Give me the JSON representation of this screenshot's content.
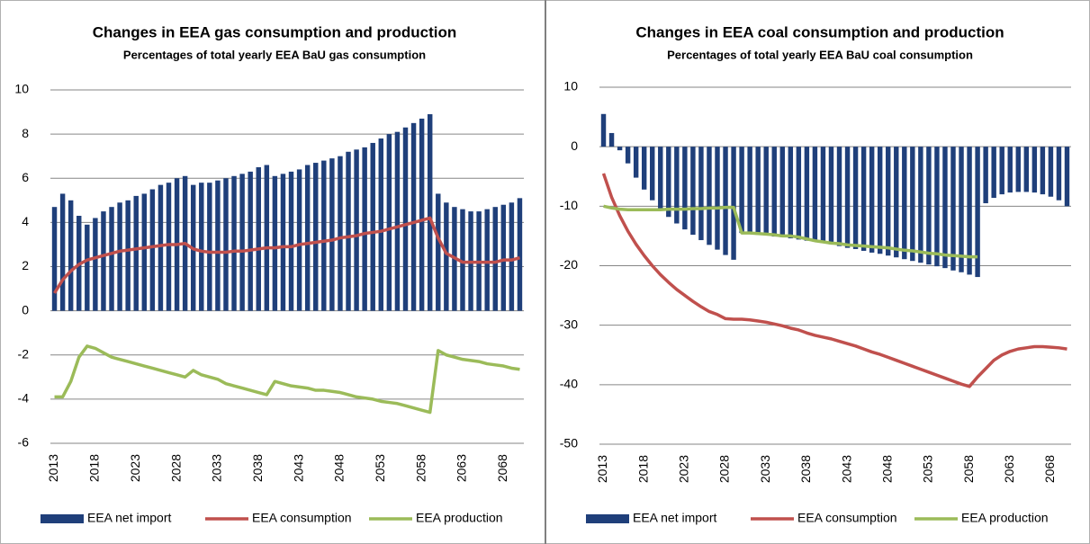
{
  "chart_data": [
    {
      "type": "bar-line",
      "title": "Changes in EEA  gas consumption and production",
      "subtitle": "Percentages  of total  yearly EEA BaU gas consumption",
      "categories": [
        "2013",
        null,
        null,
        null,
        null,
        "2018",
        null,
        null,
        null,
        null,
        "2023",
        null,
        null,
        null,
        null,
        "2028",
        null,
        null,
        null,
        null,
        "2033",
        null,
        null,
        null,
        null,
        "2038",
        null,
        null,
        null,
        null,
        "2043",
        null,
        null,
        null,
        null,
        "2048",
        null,
        null,
        null,
        null,
        "2053",
        null,
        null,
        null,
        null,
        "2058",
        null,
        null,
        null,
        null,
        "2063",
        null,
        null,
        null,
        null,
        "2068",
        null,
        null
      ],
      "ylim": [
        -6,
        10
      ],
      "yticks": [
        -6,
        -4,
        -2,
        0,
        2,
        4,
        6,
        8,
        10
      ],
      "grid": true,
      "series": [
        {
          "name": "EEA net import",
          "kind": "bar",
          "color": "#1f3f7a",
          "values": [
            4.7,
            5.3,
            5.0,
            4.3,
            3.9,
            4.2,
            4.5,
            4.7,
            4.9,
            5.0,
            5.2,
            5.3,
            5.5,
            5.7,
            5.8,
            6.0,
            6.1,
            5.7,
            5.8,
            5.8,
            5.9,
            6.0,
            6.1,
            6.2,
            6.3,
            6.5,
            6.6,
            6.1,
            6.2,
            6.3,
            6.4,
            6.6,
            6.7,
            6.8,
            6.9,
            7.0,
            7.2,
            7.3,
            7.4,
            7.6,
            7.8,
            8.0,
            8.1,
            8.3,
            8.5,
            8.7,
            8.9,
            5.3,
            4.9,
            4.7,
            4.6,
            4.5,
            4.5,
            4.6,
            4.7,
            4.8,
            4.9,
            5.1
          ]
        },
        {
          "name": "EEA consumption",
          "kind": "line",
          "color": "#c0504d",
          "values": [
            0.8,
            1.4,
            1.8,
            2.1,
            2.3,
            2.4,
            2.5,
            2.6,
            2.7,
            2.75,
            2.8,
            2.85,
            2.9,
            2.95,
            3.0,
            3.0,
            3.05,
            2.8,
            2.7,
            2.65,
            2.65,
            2.65,
            2.7,
            2.7,
            2.75,
            2.8,
            2.85,
            2.85,
            2.9,
            2.9,
            3.0,
            3.05,
            3.1,
            3.15,
            3.2,
            3.3,
            3.35,
            3.4,
            3.5,
            3.55,
            3.6,
            3.7,
            3.8,
            3.9,
            4.0,
            4.1,
            4.2,
            3.3,
            2.6,
            2.4,
            2.2,
            2.2,
            2.2,
            2.2,
            2.2,
            2.3,
            2.3,
            2.4
          ]
        },
        {
          "name": "EEA production",
          "kind": "line",
          "color": "#9bbb59",
          "values": [
            -3.9,
            -3.9,
            -3.2,
            -2.1,
            -1.6,
            -1.7,
            -1.9,
            -2.1,
            -2.2,
            -2.3,
            -2.4,
            -2.5,
            -2.6,
            -2.7,
            -2.8,
            -2.9,
            -3.0,
            -2.7,
            -2.9,
            -3.0,
            -3.1,
            -3.3,
            -3.4,
            -3.5,
            -3.6,
            -3.7,
            -3.8,
            -3.2,
            -3.3,
            -3.4,
            -3.45,
            -3.5,
            -3.6,
            -3.6,
            -3.65,
            -3.7,
            -3.8,
            -3.9,
            -3.95,
            -4.0,
            -4.1,
            -4.15,
            -4.2,
            -4.3,
            -4.4,
            -4.5,
            -4.6,
            -1.8,
            -2.0,
            -2.1,
            -2.2,
            -2.25,
            -2.3,
            -2.4,
            -2.45,
            -2.5,
            -2.6,
            -2.65
          ]
        }
      ]
    },
    {
      "type": "bar-line",
      "title": "Changes in EEA  coal consumption and production",
      "subtitle": "Percentages  of total  yearly EEA BaU coal consumption",
      "categories": [
        "2013",
        null,
        null,
        null,
        null,
        "2018",
        null,
        null,
        null,
        null,
        "2023",
        null,
        null,
        null,
        null,
        "2028",
        null,
        null,
        null,
        null,
        "2033",
        null,
        null,
        null,
        null,
        "2038",
        null,
        null,
        null,
        null,
        "2043",
        null,
        null,
        null,
        null,
        "2048",
        null,
        null,
        null,
        null,
        "2053",
        null,
        null,
        null,
        null,
        "2058",
        null,
        null,
        null,
        null,
        "2063",
        null,
        null,
        null,
        null,
        "2068",
        null,
        null
      ],
      "ylim": [
        -50,
        10
      ],
      "yticks": [
        -50,
        -40,
        -30,
        -20,
        -10,
        0,
        10
      ],
      "grid": true,
      "series": [
        {
          "name": "EEA net import",
          "kind": "bar",
          "color": "#1f3f7a",
          "values": [
            5.5,
            2.3,
            -0.6,
            -2.8,
            -5.2,
            -7.2,
            -9.0,
            -10.5,
            -11.8,
            -12.9,
            -13.9,
            -14.8,
            -15.7,
            -16.5,
            -17.3,
            -18.2,
            -19.0,
            -14.5,
            -14.6,
            -14.8,
            -14.9,
            -15.1,
            -15.2,
            -15.4,
            -15.6,
            -15.8,
            -16.0,
            -16.2,
            -16.4,
            -16.7,
            -17.0,
            -17.2,
            -17.5,
            -17.8,
            -18.0,
            -18.3,
            -18.6,
            -18.9,
            -19.2,
            -19.5,
            -19.8,
            -20.1,
            -20.4,
            -20.8,
            -21.1,
            -21.5,
            -21.9,
            -9.5,
            -8.6,
            -8.0,
            -7.7,
            -7.6,
            -7.6,
            -7.7,
            -8.0,
            -8.4,
            -9.0,
            -10.0
          ]
        },
        {
          "name": "EEA consumption",
          "kind": "line",
          "color": "#c0504d",
          "values": [
            -4.5,
            -8.5,
            -11.6,
            -14.2,
            -16.4,
            -18.3,
            -20.0,
            -21.5,
            -22.8,
            -24.0,
            -25.0,
            -26.0,
            -26.9,
            -27.7,
            -28.2,
            -28.9,
            -29.0,
            -29.0,
            -29.1,
            -29.3,
            -29.5,
            -29.8,
            -30.1,
            -30.5,
            -30.8,
            -31.3,
            -31.7,
            -32.0,
            -32.3,
            -32.7,
            -33.1,
            -33.5,
            -34.0,
            -34.5,
            -34.9,
            -35.4,
            -35.9,
            -36.4,
            -36.9,
            -37.4,
            -37.9,
            -38.4,
            -38.9,
            -39.4,
            -39.9,
            -40.3,
            -38.7,
            -37.3,
            -35.9,
            -35.0,
            -34.4,
            -34.0,
            -33.8,
            -33.6,
            -33.6,
            -33.7,
            -33.8,
            -34.0
          ]
        },
        {
          "name": "EEA production",
          "kind": "line",
          "color": "#9bbb59",
          "values": [
            -10.0,
            -10.3,
            -10.5,
            -10.6,
            -10.6,
            -10.6,
            -10.6,
            -10.6,
            -10.5,
            -10.5,
            -10.5,
            -10.4,
            -10.4,
            -10.3,
            -10.3,
            -10.2,
            -10.2,
            -14.5,
            -14.5,
            -14.6,
            -14.7,
            -14.8,
            -15.0,
            -15.0,
            -15.2,
            -15.5,
            -15.8,
            -16.0,
            -16.2,
            -16.3,
            -16.5,
            -16.6,
            -16.7,
            -16.8,
            -16.9,
            -17.0,
            -17.2,
            -17.4,
            -17.5,
            -17.7,
            -17.9,
            -18.0,
            -18.2,
            -18.3,
            -18.4,
            -18.5,
            -18.5,
            null,
            null,
            null,
            null,
            null,
            null,
            null,
            null,
            null,
            null,
            null
          ]
        }
      ]
    }
  ]
}
